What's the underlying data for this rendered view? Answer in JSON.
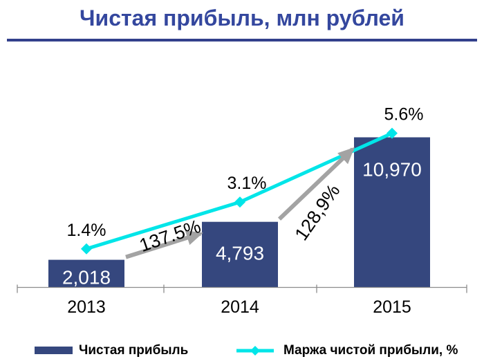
{
  "title": "Чистая прибыль, млн рублей",
  "colors": {
    "background": "#FFFFFF",
    "title": "#34479E",
    "rule": "#32408C",
    "bar": "#35477E",
    "line": "#00E5E8",
    "arrow": "#A3A3A3",
    "axis": "#8C8C8C",
    "bar_label": "#FFFFFF",
    "text": "#000000"
  },
  "chart_data": {
    "type": "bar",
    "title": "Чистая прибыль, млн рублей",
    "categories": [
      "2013",
      "2014",
      "2015"
    ],
    "series": [
      {
        "name": "Чистая прибыль",
        "type": "bar",
        "values": [
          2018,
          4793,
          10970
        ],
        "labels": [
          "2,018",
          "4,793",
          "10,970"
        ]
      },
      {
        "name": "Маржа чистой прибыли, %",
        "type": "line",
        "values": [
          1.4,
          3.1,
          5.6
        ],
        "labels": [
          "1.4%",
          "3.1%",
          "5.6%"
        ]
      }
    ],
    "annotations": [
      {
        "text": "137.5%",
        "between": [
          0,
          1
        ],
        "rotation": -19
      },
      {
        "text": "128,9%",
        "between": [
          1,
          2
        ],
        "rotation": -55
      }
    ],
    "ylim_bar": [
      0,
      11500
    ],
    "ylim_line_pct": [
      0,
      6.5
    ],
    "grid": false,
    "legend_position": "bottom"
  },
  "legend": {
    "items": [
      {
        "label": "Чистая прибыль",
        "marker": "bar-swatch"
      },
      {
        "label": "Маржа чистой прибыли, %",
        "marker": "line-with-diamond"
      }
    ]
  }
}
